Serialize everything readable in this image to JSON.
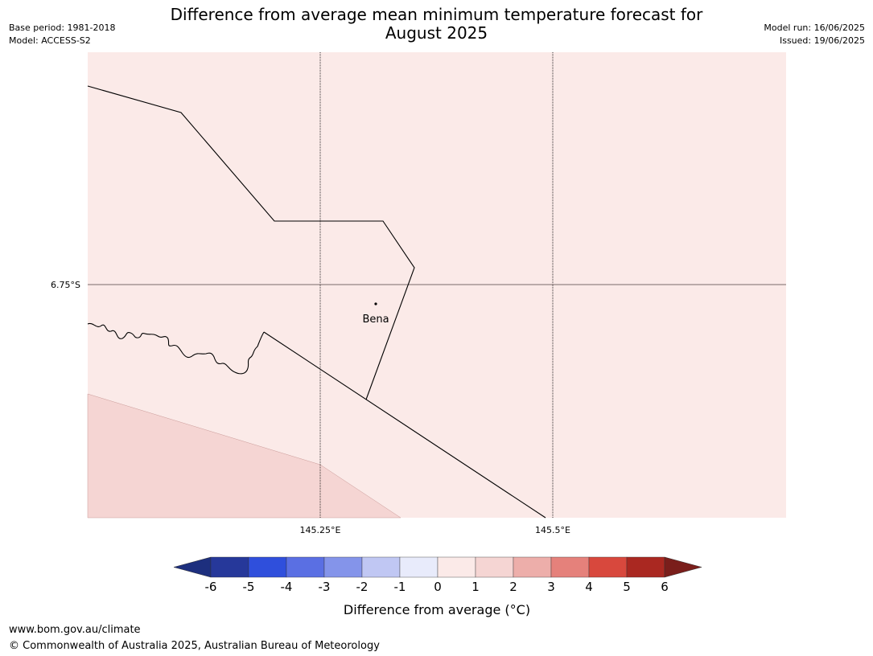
{
  "header": {
    "title_line1": "Difference from average mean minimum temperature forecast for",
    "title_line2": "August 2025",
    "base_period": "Base period: 1981-2018",
    "model": "Model: ACCESS-S2",
    "model_run": "Model run: 16/06/2025",
    "issued": "Issued: 19/06/2025"
  },
  "map": {
    "background_color": "#fbeae8",
    "lower_band_color": "#f5d5d3",
    "lat_label": "6.75°S",
    "lon_labels": [
      "145.25°E",
      "145.5°E"
    ],
    "place": {
      "name": "Bena"
    }
  },
  "colorbar": {
    "label": "Difference from average (°C)",
    "ticks": [
      "-6",
      "-5",
      "-4",
      "-3",
      "-2",
      "-1",
      "0",
      "1",
      "2",
      "3",
      "4",
      "5",
      "6"
    ],
    "colors": [
      "#26389a",
      "#2f4fdc",
      "#5a6fe3",
      "#8494ea",
      "#c0c7f3",
      "#e8ebfb",
      "#fbeae8",
      "#f5d5d3",
      "#edaeaa",
      "#e5817b",
      "#d8483d",
      "#aa2821"
    ],
    "under_color": "#1d2f7e",
    "over_color": "#7a1e1b"
  },
  "footer": {
    "url": "www.bom.gov.au/climate",
    "copyright": "© Commonwealth of Australia 2025, Australian Bureau of Meteorology"
  }
}
